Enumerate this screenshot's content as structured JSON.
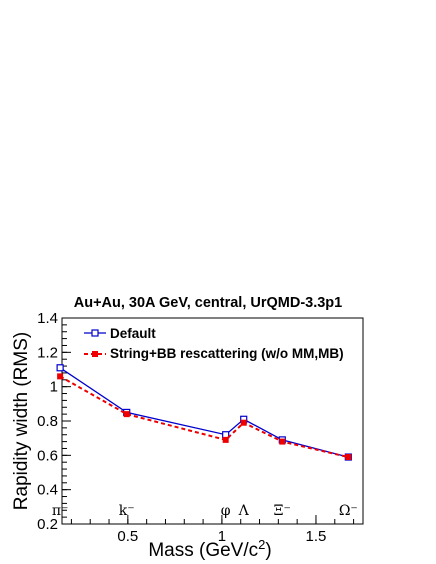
{
  "chart_data": {
    "type": "line",
    "title": "Au+Au, 30A GeV, central, UrQMD-3.3p1",
    "xlabel": "Mass (GeV/c^2)",
    "ylabel": "Rapidity width (RMS)",
    "xlim": [
      0.15,
      1.75
    ],
    "ylim": [
      0.2,
      1.4
    ],
    "x_ticks": [
      "0.5",
      "1",
      "1.5"
    ],
    "y_ticks": [
      "0.2",
      "0.4",
      "0.6",
      "0.8",
      "1",
      "1.2",
      "1.4"
    ],
    "grid": false,
    "legend_position": "top-left",
    "particle_labels": [
      {
        "text": "π⁻",
        "x": 0.14
      },
      {
        "text": "k⁻",
        "x": 0.494
      },
      {
        "text": "φ",
        "x": 1.02
      },
      {
        "text": "Λ",
        "x": 1.116
      },
      {
        "text": "Ξ⁻",
        "x": 1.321
      },
      {
        "text": "Ω⁻",
        "x": 1.672
      }
    ],
    "series": [
      {
        "name": "Default",
        "color": "#0000cc",
        "marker": "open-square",
        "line_style": "solid",
        "x": [
          0.14,
          0.494,
          1.02,
          1.116,
          1.321,
          1.672
        ],
        "y": [
          1.11,
          0.85,
          0.72,
          0.81,
          0.69,
          0.59
        ]
      },
      {
        "name": "String+BB rescattering (w/o MM,MB)",
        "color": "#ee0000",
        "marker": "filled-square",
        "line_style": "dashed",
        "x": [
          0.14,
          0.494,
          1.02,
          1.116,
          1.321,
          1.672
        ],
        "y": [
          1.06,
          0.84,
          0.69,
          0.79,
          0.68,
          0.59
        ]
      }
    ]
  }
}
